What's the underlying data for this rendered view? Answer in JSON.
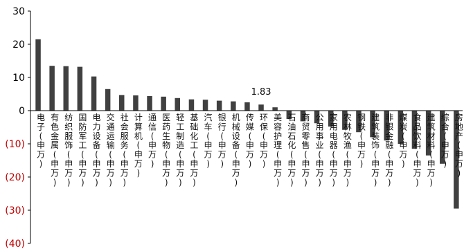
{
  "chart_data": {
    "type": "bar",
    "title": "",
    "xlabel": "",
    "ylabel": "",
    "ylim": [
      -40,
      30
    ],
    "yticks": [
      30,
      20,
      10,
      0,
      -10,
      -20,
      -30,
      -40
    ],
    "ytick_labels": [
      "30",
      "20",
      "10",
      "0",
      "(10)",
      "(20)",
      "(30)",
      "(40)"
    ],
    "grid": false,
    "legend": "none",
    "categories": [
      "电子(申万)",
      "有色金属(申万)",
      "纺织服饰(申万)",
      "国防军工(申万)",
      "电力设备(申万)",
      "交通运输(申万)",
      "社会服务(申万)",
      "计算机(申万)",
      "通信(申万)",
      "医药生物(申万)",
      "轻工制造(申万)",
      "基础化工(申万)",
      "汽车(申万)",
      "银行(申万)",
      "机械设备(申万)",
      "传媒(申万)",
      "环保(申万)",
      "美容护理(申万)",
      "石油石化(申万)",
      "商贸零售(申万)",
      "公用事业(申万)",
      "家用电器(申万)",
      "农林牧渔(申万)",
      "钢铁(申万)",
      "建筑装饰(申万)",
      "非银金融(申万)",
      "煤炭(申万)",
      "食品饮料(申万)",
      "建筑材料(申万)",
      "综合(申万)",
      "房地产(申万)"
    ],
    "values": [
      21.5,
      13.5,
      13.4,
      13.2,
      10.3,
      6.5,
      4.7,
      4.6,
      4.4,
      4.2,
      3.8,
      3.4,
      3.3,
      3.0,
      2.8,
      2.5,
      1.83,
      1.0,
      -2.5,
      -3.2,
      -3.8,
      -4.8,
      -5.8,
      -6.5,
      -8.0,
      -9.0,
      -10.0,
      -11.5,
      -13.5,
      -16.0,
      -29.5
    ],
    "data_labels": [
      {
        "index": 16,
        "text": "1.83"
      }
    ],
    "colors": {
      "bar": "#404040",
      "axis": "#000000",
      "positive_tick": "#000000",
      "negative_tick": "#c00000"
    }
  }
}
